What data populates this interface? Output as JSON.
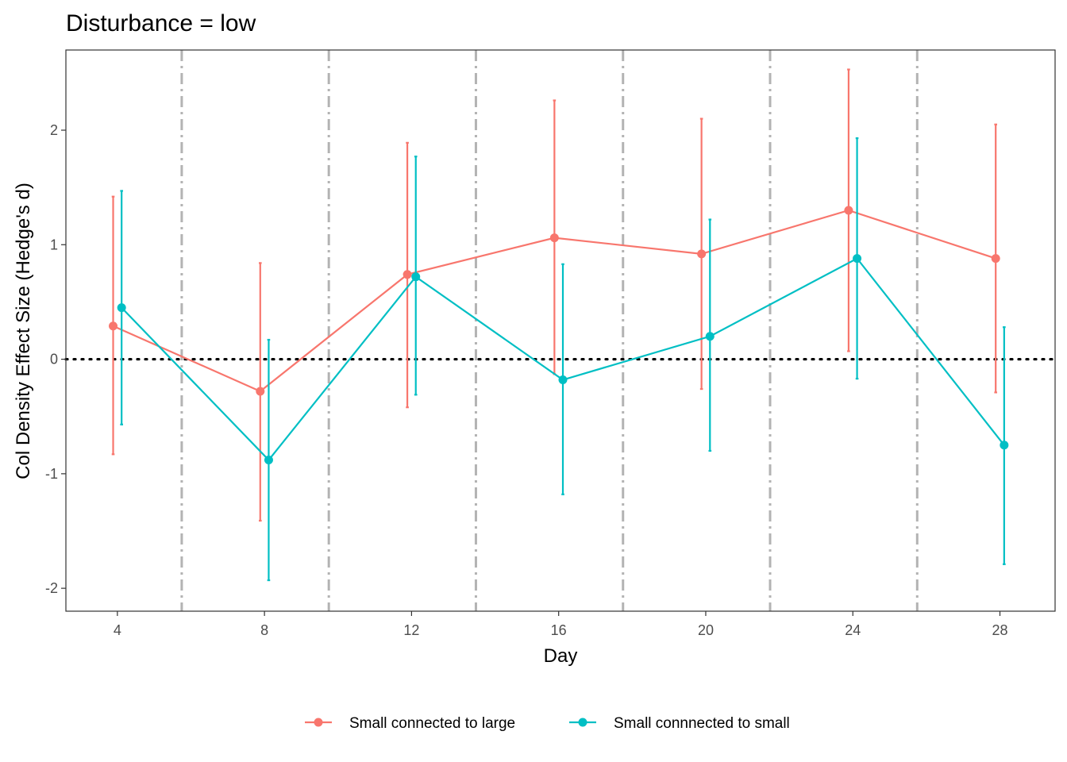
{
  "chart_data": {
    "type": "line",
    "title": "Disturbance = low",
    "xlabel": "Day",
    "ylabel": "Col Density Effect Size (Hedge's d)",
    "x": [
      4,
      8,
      12,
      16,
      20,
      24,
      28
    ],
    "xlim": [
      2.6,
      29.5
    ],
    "ylim": [
      -2.2,
      2.7
    ],
    "xticks": [
      "4",
      "8",
      "12",
      "16",
      "20",
      "24",
      "28"
    ],
    "yticks": [
      "-2",
      "-1",
      "0",
      "1",
      "2"
    ],
    "ytick_values": [
      -2,
      -1,
      0,
      1,
      2
    ],
    "reference_hline": 0,
    "vlines": [
      5.75,
      9.75,
      13.75,
      17.75,
      21.75,
      25.75
    ],
    "dodge": 0.23,
    "grid": false,
    "legend_position": "bottom",
    "series": [
      {
        "name": "Small connected to large",
        "color": "#F8766D",
        "values": [
          0.29,
          -0.28,
          0.74,
          1.06,
          0.92,
          1.3,
          0.88
        ],
        "lower": [
          -0.83,
          -1.41,
          -0.42,
          -0.13,
          -0.26,
          0.07,
          -0.29
        ],
        "upper": [
          1.42,
          0.84,
          1.89,
          2.26,
          2.1,
          2.53,
          2.05
        ]
      },
      {
        "name": "Small connnected to small",
        "color": "#00BFC4",
        "values": [
          0.45,
          -0.88,
          0.72,
          -0.18,
          0.2,
          0.88,
          -0.75
        ],
        "lower": [
          -0.57,
          -1.93,
          -0.31,
          -1.18,
          -0.8,
          -0.17,
          -1.79
        ],
        "upper": [
          1.47,
          0.17,
          1.77,
          0.83,
          1.22,
          1.93,
          0.28
        ]
      }
    ]
  }
}
